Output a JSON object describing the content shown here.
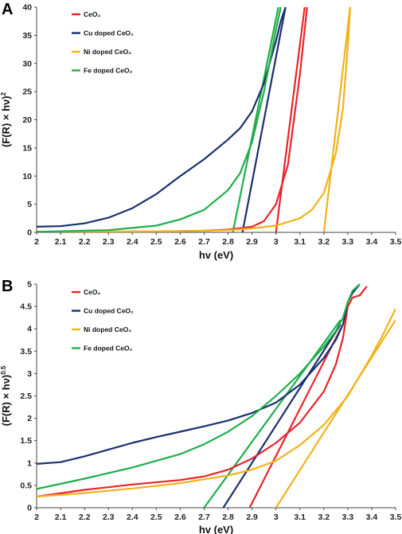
{
  "chart_data": [
    {
      "panel": "A",
      "type": "line",
      "xlabel": "hv (eV)",
      "ylabel": "(F(R) × hν)",
      "ylabel_sup": "2",
      "xlim": [
        2,
        3.5
      ],
      "ylim": [
        0,
        40
      ],
      "xticks": [
        2,
        2.1,
        2.2,
        2.3,
        2.4,
        2.5,
        2.6,
        2.7,
        2.8,
        2.9,
        3,
        3.1,
        3.2,
        3.3,
        3.4,
        3.5
      ],
      "yticks": [
        0,
        5,
        10,
        15,
        20,
        25,
        30,
        35,
        40
      ],
      "legend_position": "top-left",
      "series": [
        {
          "name": "CeO₂",
          "color": "#e8242a",
          "x": [
            2.0,
            2.5,
            2.7,
            2.8,
            2.9,
            2.95,
            3.0,
            3.05,
            3.1,
            3.13
          ],
          "y": [
            0.1,
            0.15,
            0.3,
            0.5,
            1.0,
            2.0,
            5.0,
            12.0,
            28.0,
            40.0
          ]
        },
        {
          "name": "Cu doped CeO₂",
          "color": "#1a2f6e",
          "x": [
            2.0,
            2.1,
            2.2,
            2.3,
            2.4,
            2.5,
            2.6,
            2.7,
            2.8,
            2.85,
            2.9,
            2.95,
            3.0,
            3.02,
            3.04
          ],
          "y": [
            1.0,
            1.1,
            1.6,
            2.6,
            4.3,
            6.8,
            10.0,
            13.0,
            16.5,
            18.5,
            21.5,
            26.5,
            34.0,
            37.5,
            40.0
          ]
        },
        {
          "name": "Ni doped CeO₂",
          "color": "#f2b21a",
          "x": [
            2.0,
            2.6,
            2.8,
            2.9,
            3.0,
            3.1,
            3.15,
            3.2,
            3.25,
            3.28,
            3.3,
            3.31
          ],
          "y": [
            0.1,
            0.2,
            0.4,
            0.7,
            1.2,
            2.5,
            4.0,
            7.0,
            14.0,
            22.0,
            33.0,
            40.0
          ]
        },
        {
          "name": "Fe doped CeO₂",
          "color": "#1fae4b",
          "x": [
            2.0,
            2.3,
            2.5,
            2.6,
            2.7,
            2.8,
            2.85,
            2.9,
            2.95,
            3.0,
            3.02
          ],
          "y": [
            0.1,
            0.4,
            1.2,
            2.3,
            4.0,
            7.5,
            10.5,
            16.0,
            25.0,
            36.0,
            40.0
          ]
        }
      ],
      "tangents": [
        {
          "color": "#e8242a",
          "x": [
            3.0,
            3.12
          ],
          "y": [
            0,
            40
          ]
        },
        {
          "color": "#1a2f6e",
          "x": [
            2.86,
            3.04
          ],
          "y": [
            0,
            40
          ]
        },
        {
          "color": "#f2b21a",
          "x": [
            3.2,
            3.31
          ],
          "y": [
            0,
            40
          ]
        },
        {
          "color": "#1fae4b",
          "x": [
            2.82,
            3.01
          ],
          "y": [
            0,
            40
          ]
        }
      ]
    },
    {
      "panel": "B",
      "type": "line",
      "xlabel": "hv (eV)",
      "ylabel": "(F(R) × hν)",
      "ylabel_sup": "0.5",
      "xlim": [
        2,
        3.5
      ],
      "ylim": [
        0,
        5
      ],
      "xticks": [
        2,
        2.1,
        2.2,
        2.3,
        2.4,
        2.5,
        2.6,
        2.7,
        2.8,
        2.9,
        3,
        3.1,
        3.2,
        3.3,
        3.4,
        3.5
      ],
      "yticks": [
        0,
        0.5,
        1,
        1.5,
        2,
        2.5,
        3,
        3.5,
        4,
        4.5,
        5
      ],
      "legend_position": "top-left",
      "series": [
        {
          "name": "CeO₂",
          "color": "#e8242a",
          "x": [
            2.0,
            2.2,
            2.4,
            2.6,
            2.7,
            2.8,
            2.9,
            3.0,
            3.1,
            3.2,
            3.25,
            3.28,
            3.3,
            3.32,
            3.35,
            3.38
          ],
          "y": [
            0.25,
            0.4,
            0.52,
            0.62,
            0.7,
            0.85,
            1.1,
            1.45,
            1.9,
            2.6,
            3.2,
            3.8,
            4.5,
            4.7,
            4.75,
            4.95
          ]
        },
        {
          "name": "Cu doped CeO₂",
          "color": "#1a2f6e",
          "x": [
            2.0,
            2.1,
            2.2,
            2.3,
            2.4,
            2.5,
            2.6,
            2.7,
            2.8,
            2.9,
            3.0,
            3.1,
            3.2,
            3.25,
            3.28,
            3.3,
            3.32,
            3.35
          ],
          "y": [
            0.98,
            1.02,
            1.15,
            1.3,
            1.45,
            1.58,
            1.7,
            1.82,
            1.95,
            2.12,
            2.35,
            2.75,
            3.35,
            3.75,
            4.1,
            4.6,
            4.8,
            5.0
          ]
        },
        {
          "name": "Ni doped CeO₂",
          "color": "#f2b21a",
          "x": [
            2.0,
            2.2,
            2.4,
            2.6,
            2.8,
            2.9,
            3.0,
            3.1,
            3.2,
            3.3,
            3.4,
            3.45,
            3.5
          ],
          "y": [
            0.25,
            0.33,
            0.43,
            0.55,
            0.72,
            0.85,
            1.05,
            1.4,
            1.85,
            2.5,
            3.4,
            3.9,
            4.45
          ]
        },
        {
          "name": "Fe doped CeO₂",
          "color": "#1fae4b",
          "x": [
            2.0,
            2.2,
            2.4,
            2.6,
            2.7,
            2.8,
            2.9,
            3.0,
            3.1,
            3.2,
            3.25,
            3.28,
            3.3,
            3.32,
            3.35
          ],
          "y": [
            0.42,
            0.65,
            0.9,
            1.2,
            1.42,
            1.7,
            2.05,
            2.5,
            3.0,
            3.6,
            3.95,
            4.25,
            4.6,
            4.85,
            5.0
          ]
        }
      ],
      "tangents": [
        {
          "color": "#e8242a",
          "x": [
            2.89,
            3.27
          ],
          "y": [
            0,
            4.0
          ]
        },
        {
          "color": "#1a2f6e",
          "x": [
            2.78,
            3.27
          ],
          "y": [
            0,
            4.1
          ]
        },
        {
          "color": "#f2b21a",
          "x": [
            3.0,
            3.5
          ],
          "y": [
            0,
            4.2
          ]
        },
        {
          "color": "#1fae4b",
          "x": [
            2.7,
            3.27
          ],
          "y": [
            0,
            4.2
          ]
        }
      ]
    }
  ]
}
